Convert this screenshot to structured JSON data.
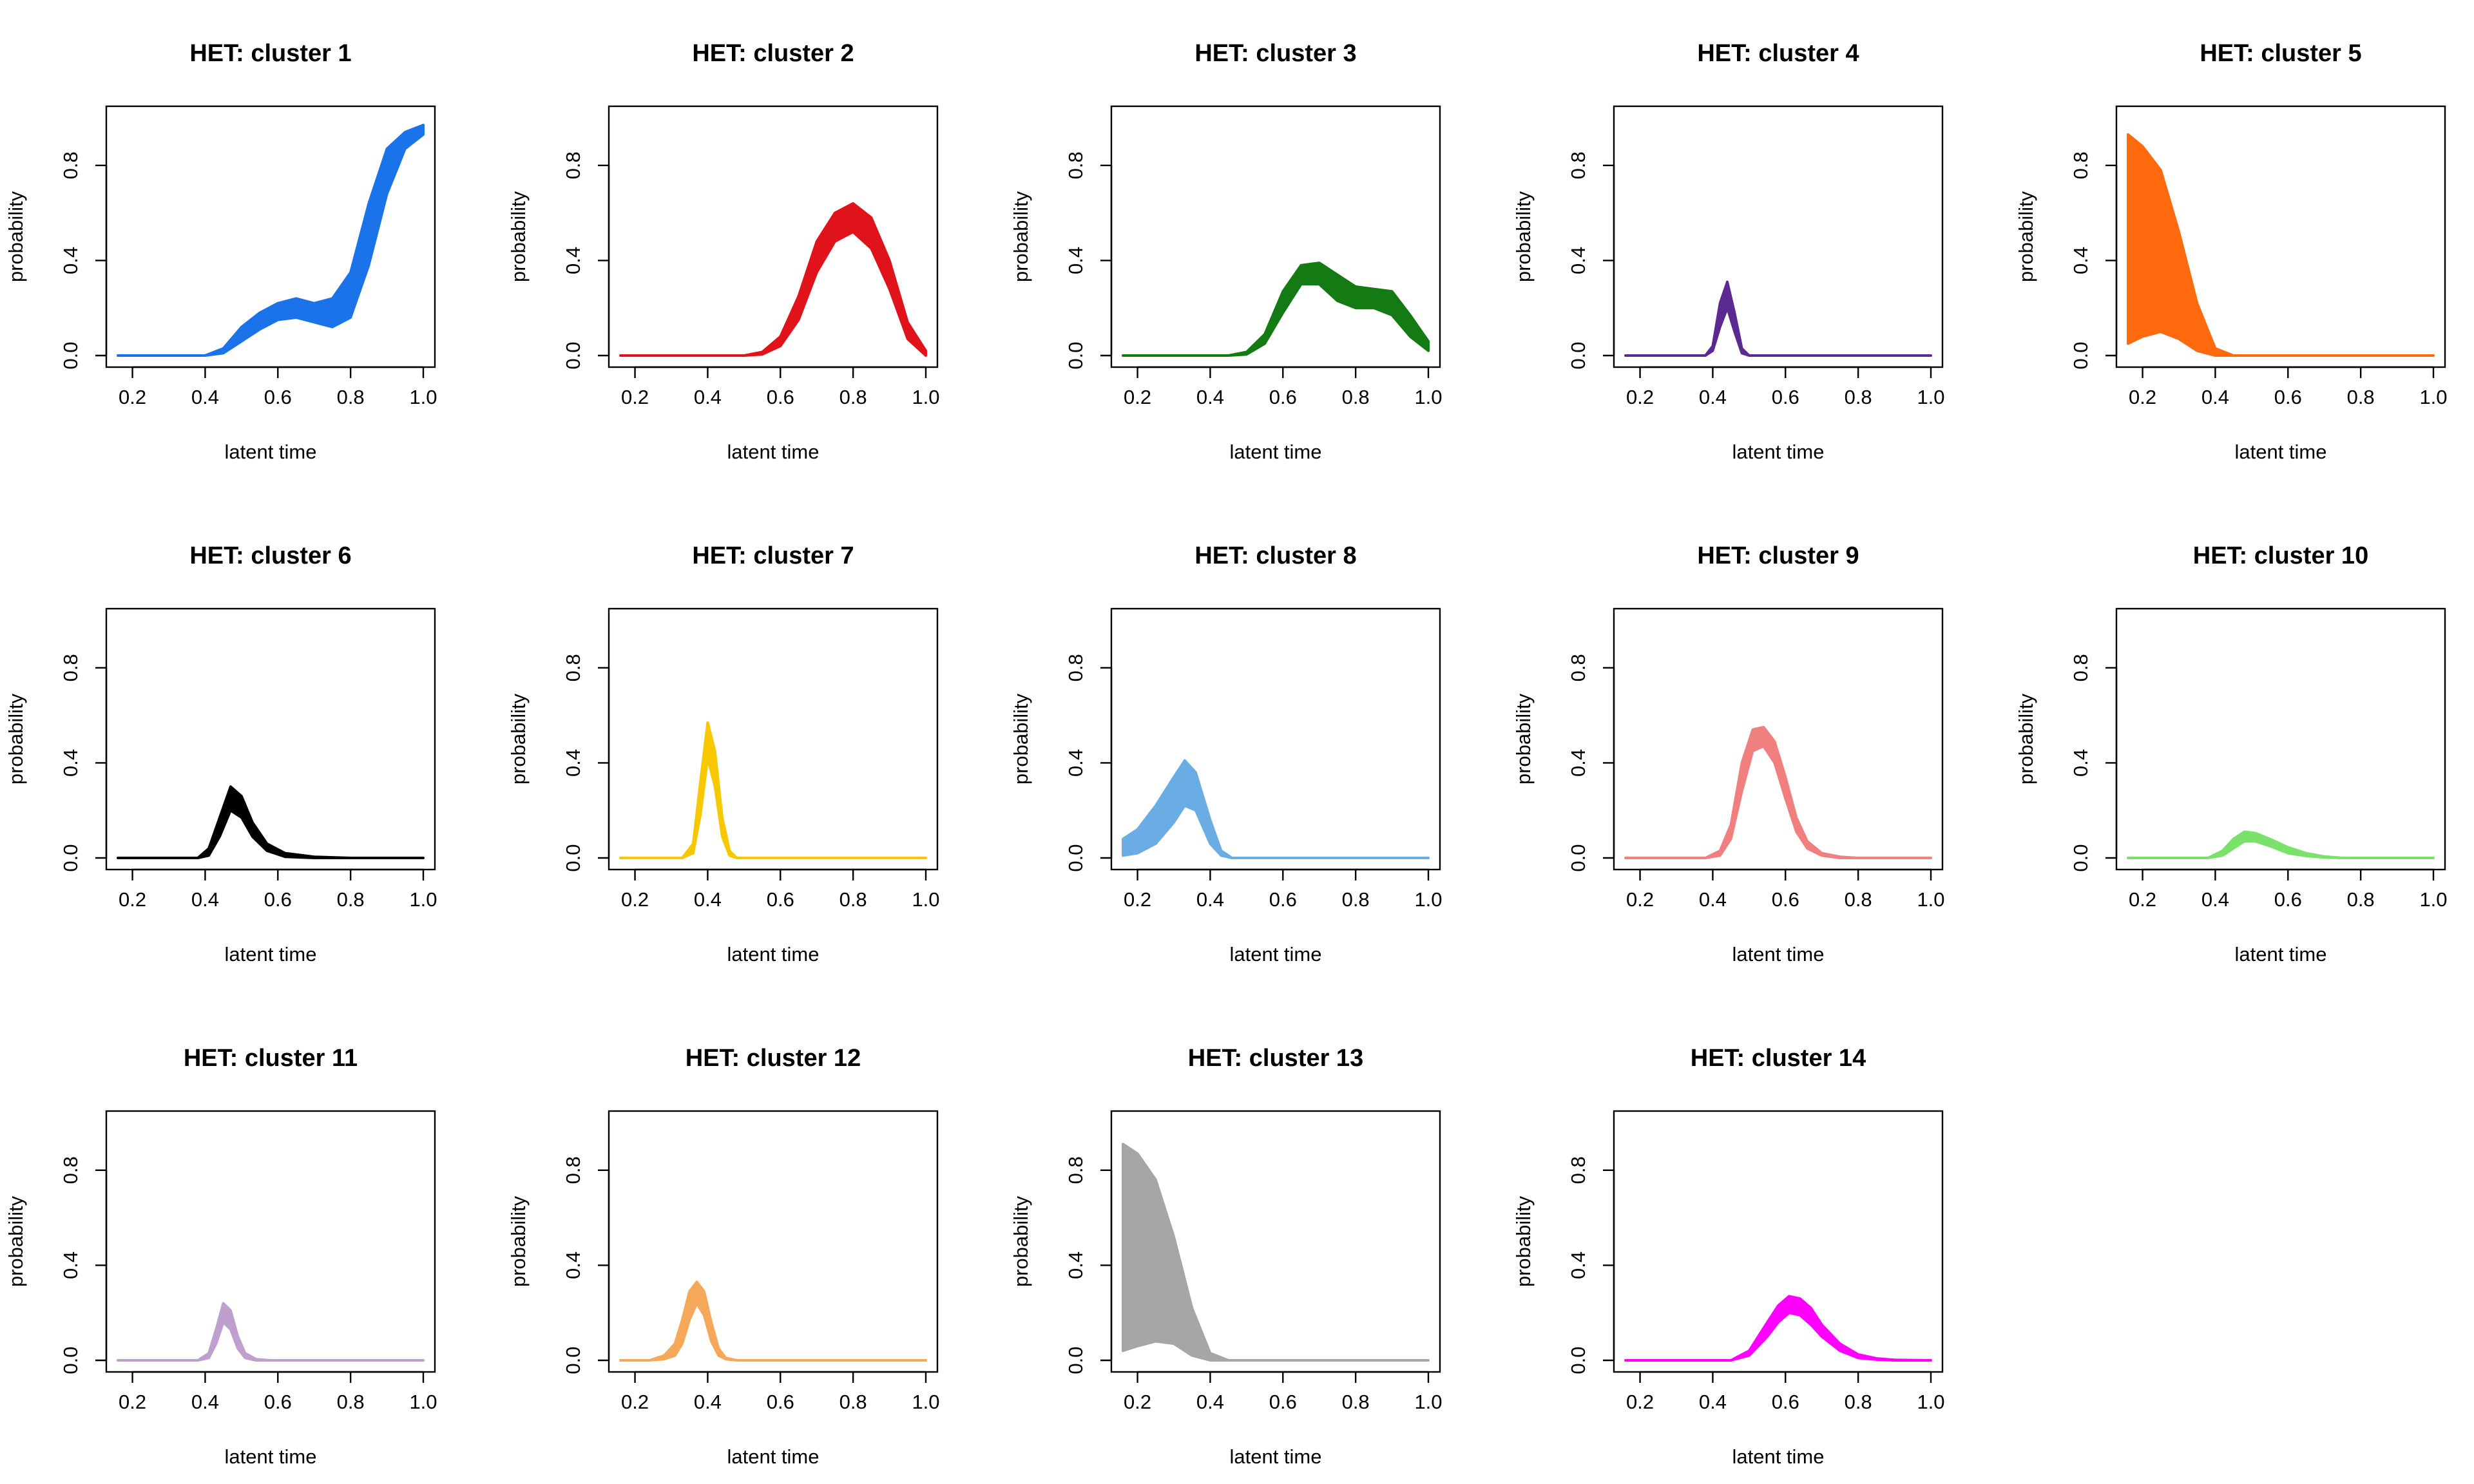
{
  "chart_data": [
    {
      "type": "area",
      "title": "HET: cluster 1",
      "xlabel": "latent time",
      "ylabel": "probability",
      "xlim": [
        0.16,
        1.0
      ],
      "ylim": [
        0,
        1
      ],
      "xticks": [
        "0.2",
        "0.4",
        "0.6",
        "0.8",
        "1.0"
      ],
      "yticks": [
        "0.0",
        "0.4",
        "0.8"
      ],
      "color": "#1A73E8",
      "x": [
        0.16,
        0.4,
        0.45,
        0.5,
        0.55,
        0.6,
        0.65,
        0.7,
        0.75,
        0.8,
        0.85,
        0.9,
        0.95,
        1.0
      ],
      "lower": [
        0,
        0,
        0.01,
        0.06,
        0.11,
        0.15,
        0.16,
        0.14,
        0.12,
        0.16,
        0.38,
        0.68,
        0.87,
        0.93
      ],
      "upper": [
        0,
        0,
        0.03,
        0.12,
        0.18,
        0.22,
        0.24,
        0.22,
        0.24,
        0.35,
        0.64,
        0.87,
        0.94,
        0.97
      ]
    },
    {
      "type": "area",
      "title": "HET: cluster 2",
      "xlabel": "latent time",
      "ylabel": "probability",
      "xlim": [
        0.16,
        1.0
      ],
      "ylim": [
        0,
        1
      ],
      "xticks": [
        "0.2",
        "0.4",
        "0.6",
        "0.8",
        "1.0"
      ],
      "yticks": [
        "0.0",
        "0.4",
        "0.8"
      ],
      "color": "#E0121A",
      "x": [
        0.16,
        0.5,
        0.55,
        0.6,
        0.65,
        0.7,
        0.75,
        0.8,
        0.85,
        0.9,
        0.95,
        1.0
      ],
      "lower": [
        0,
        0,
        0.005,
        0.04,
        0.15,
        0.35,
        0.48,
        0.52,
        0.45,
        0.28,
        0.07,
        0.0
      ],
      "upper": [
        0,
        0,
        0.015,
        0.08,
        0.25,
        0.48,
        0.6,
        0.64,
        0.58,
        0.4,
        0.14,
        0.02
      ]
    },
    {
      "type": "area",
      "title": "HET: cluster 3",
      "xlabel": "latent time",
      "ylabel": "probability",
      "xlim": [
        0.16,
        1.0
      ],
      "ylim": [
        0,
        1
      ],
      "xticks": [
        "0.2",
        "0.4",
        "0.6",
        "0.8",
        "1.0"
      ],
      "yticks": [
        "0.0",
        "0.4",
        "0.8"
      ],
      "color": "#147A14",
      "x": [
        0.16,
        0.45,
        0.5,
        0.55,
        0.6,
        0.65,
        0.7,
        0.75,
        0.8,
        0.85,
        0.9,
        0.95,
        1.0
      ],
      "lower": [
        0,
        0,
        0.005,
        0.05,
        0.18,
        0.3,
        0.3,
        0.23,
        0.2,
        0.2,
        0.17,
        0.08,
        0.02
      ],
      "upper": [
        0,
        0,
        0.015,
        0.09,
        0.27,
        0.38,
        0.39,
        0.34,
        0.29,
        0.28,
        0.27,
        0.17,
        0.06
      ]
    },
    {
      "type": "area",
      "title": "HET: cluster 4",
      "xlabel": "latent time",
      "ylabel": "probability",
      "xlim": [
        0.16,
        1.0
      ],
      "ylim": [
        0,
        1
      ],
      "xticks": [
        "0.2",
        "0.4",
        "0.6",
        "0.8",
        "1.0"
      ],
      "yticks": [
        "0.0",
        "0.4",
        "0.8"
      ],
      "color": "#5B2A91",
      "x": [
        0.16,
        0.38,
        0.4,
        0.42,
        0.44,
        0.46,
        0.48,
        0.5,
        1.0
      ],
      "lower": [
        0,
        0,
        0.02,
        0.12,
        0.2,
        0.1,
        0.01,
        0,
        0
      ],
      "upper": [
        0,
        0,
        0.04,
        0.22,
        0.31,
        0.18,
        0.03,
        0,
        0
      ]
    },
    {
      "type": "area",
      "title": "HET: cluster 5",
      "xlabel": "latent time",
      "ylabel": "probability",
      "xlim": [
        0.16,
        1.0
      ],
      "ylim": [
        0,
        1
      ],
      "xticks": [
        "0.2",
        "0.4",
        "0.6",
        "0.8",
        "1.0"
      ],
      "yticks": [
        "0.0",
        "0.4",
        "0.8"
      ],
      "color": "#FF6A0E",
      "x": [
        0.16,
        0.2,
        0.25,
        0.3,
        0.35,
        0.4,
        0.45,
        1.0
      ],
      "lower": [
        0.05,
        0.08,
        0.1,
        0.07,
        0.02,
        0,
        0,
        0
      ],
      "upper": [
        0.93,
        0.88,
        0.78,
        0.52,
        0.22,
        0.03,
        0,
        0
      ]
    },
    {
      "type": "area",
      "title": "HET: cluster 6",
      "xlabel": "latent time",
      "ylabel": "probability",
      "xlim": [
        0.16,
        1.0
      ],
      "ylim": [
        0,
        1
      ],
      "xticks": [
        "0.2",
        "0.4",
        "0.6",
        "0.8",
        "1.0"
      ],
      "yticks": [
        "0.0",
        "0.4",
        "0.8"
      ],
      "color": "#000000",
      "x": [
        0.16,
        0.38,
        0.41,
        0.44,
        0.47,
        0.5,
        0.53,
        0.57,
        0.62,
        0.7,
        0.8,
        1.0
      ],
      "lower": [
        0,
        0,
        0.01,
        0.09,
        0.2,
        0.17,
        0.09,
        0.03,
        0.005,
        0,
        0,
        0
      ],
      "upper": [
        0,
        0,
        0.04,
        0.17,
        0.3,
        0.26,
        0.15,
        0.06,
        0.02,
        0.005,
        0,
        0
      ]
    },
    {
      "type": "area",
      "title": "HET: cluster 7",
      "xlabel": "latent time",
      "ylabel": "probability",
      "xlim": [
        0.16,
        1.0
      ],
      "ylim": [
        0,
        1
      ],
      "xticks": [
        "0.2",
        "0.4",
        "0.6",
        "0.8",
        "1.0"
      ],
      "yticks": [
        "0.0",
        "0.4",
        "0.8"
      ],
      "color": "#F7C800",
      "x": [
        0.16,
        0.33,
        0.36,
        0.38,
        0.4,
        0.42,
        0.44,
        0.46,
        0.48,
        1.0
      ],
      "lower": [
        0,
        0,
        0.02,
        0.18,
        0.42,
        0.3,
        0.09,
        0.01,
        0,
        0
      ],
      "upper": [
        0,
        0,
        0.06,
        0.32,
        0.57,
        0.45,
        0.17,
        0.03,
        0,
        0
      ]
    },
    {
      "type": "area",
      "title": "HET: cluster 8",
      "xlabel": "latent time",
      "ylabel": "probability",
      "xlim": [
        0.16,
        1.0
      ],
      "ylim": [
        0,
        1
      ],
      "xticks": [
        "0.2",
        "0.4",
        "0.6",
        "0.8",
        "1.0"
      ],
      "yticks": [
        "0.0",
        "0.4",
        "0.8"
      ],
      "color": "#6AADE4",
      "x": [
        0.16,
        0.2,
        0.25,
        0.3,
        0.33,
        0.36,
        0.4,
        0.43,
        0.46,
        1.0
      ],
      "lower": [
        0.01,
        0.02,
        0.06,
        0.15,
        0.22,
        0.2,
        0.06,
        0.01,
        0,
        0
      ],
      "upper": [
        0.08,
        0.12,
        0.22,
        0.34,
        0.41,
        0.36,
        0.16,
        0.03,
        0,
        0
      ]
    },
    {
      "type": "area",
      "title": "HET: cluster 9",
      "xlabel": "latent time",
      "ylabel": "probability",
      "xlim": [
        0.16,
        1.0
      ],
      "ylim": [
        0,
        1
      ],
      "xticks": [
        "0.2",
        "0.4",
        "0.6",
        "0.8",
        "1.0"
      ],
      "yticks": [
        "0.0",
        "0.4",
        "0.8"
      ],
      "color": "#F08080",
      "x": [
        0.16,
        0.38,
        0.42,
        0.45,
        0.48,
        0.51,
        0.54,
        0.57,
        0.6,
        0.63,
        0.66,
        0.7,
        0.75,
        0.8,
        1.0
      ],
      "lower": [
        0,
        0,
        0.01,
        0.08,
        0.28,
        0.45,
        0.47,
        0.4,
        0.25,
        0.11,
        0.04,
        0.01,
        0,
        0,
        0
      ],
      "upper": [
        0,
        0,
        0.03,
        0.14,
        0.4,
        0.54,
        0.55,
        0.49,
        0.34,
        0.17,
        0.07,
        0.02,
        0.005,
        0,
        0
      ]
    },
    {
      "type": "area",
      "title": "HET: cluster 10",
      "xlabel": "latent time",
      "ylabel": "probability",
      "xlim": [
        0.16,
        1.0
      ],
      "ylim": [
        0,
        1
      ],
      "xticks": [
        "0.2",
        "0.4",
        "0.6",
        "0.8",
        "1.0"
      ],
      "yticks": [
        "0.0",
        "0.4",
        "0.8"
      ],
      "color": "#7AE26A",
      "x": [
        0.16,
        0.38,
        0.42,
        0.45,
        0.48,
        0.51,
        0.55,
        0.6,
        0.65,
        0.7,
        0.75,
        1.0
      ],
      "lower": [
        0,
        0,
        0.01,
        0.04,
        0.07,
        0.07,
        0.05,
        0.02,
        0.008,
        0.002,
        0,
        0
      ],
      "upper": [
        0,
        0,
        0.03,
        0.08,
        0.11,
        0.105,
        0.08,
        0.045,
        0.02,
        0.006,
        0,
        0
      ]
    },
    {
      "type": "area",
      "title": "HET: cluster 11",
      "xlabel": "latent time",
      "ylabel": "probability",
      "xlim": [
        0.16,
        1.0
      ],
      "ylim": [
        0,
        1
      ],
      "xticks": [
        "0.2",
        "0.4",
        "0.6",
        "0.8",
        "1.0"
      ],
      "yticks": [
        "0.0",
        "0.4",
        "0.8"
      ],
      "color": "#BFA0CC",
      "x": [
        0.16,
        0.38,
        0.41,
        0.43,
        0.45,
        0.47,
        0.49,
        0.51,
        0.54,
        0.58,
        1.0
      ],
      "lower": [
        0,
        0,
        0.01,
        0.07,
        0.16,
        0.13,
        0.05,
        0.01,
        0,
        0,
        0
      ],
      "upper": [
        0,
        0,
        0.03,
        0.13,
        0.24,
        0.21,
        0.1,
        0.03,
        0.005,
        0,
        0
      ]
    },
    {
      "type": "area",
      "title": "HET: cluster 12",
      "xlabel": "latent time",
      "ylabel": "probability",
      "xlim": [
        0.16,
        1.0
      ],
      "ylim": [
        0,
        1
      ],
      "xticks": [
        "0.2",
        "0.4",
        "0.6",
        "0.8",
        "1.0"
      ],
      "yticks": [
        "0.0",
        "0.4",
        "0.8"
      ],
      "color": "#F6A85A",
      "x": [
        0.16,
        0.24,
        0.28,
        0.31,
        0.33,
        0.35,
        0.37,
        0.39,
        0.41,
        0.43,
        0.45,
        0.48,
        1.0
      ],
      "lower": [
        0,
        0,
        0.005,
        0.02,
        0.07,
        0.17,
        0.24,
        0.19,
        0.08,
        0.02,
        0.005,
        0,
        0
      ],
      "upper": [
        0,
        0,
        0.02,
        0.07,
        0.17,
        0.29,
        0.33,
        0.29,
        0.16,
        0.05,
        0.01,
        0,
        0
      ]
    },
    {
      "type": "area",
      "title": "HET: cluster 13",
      "xlabel": "latent time",
      "ylabel": "probability",
      "xlim": [
        0.16,
        1.0
      ],
      "ylim": [
        0,
        1
      ],
      "xticks": [
        "0.2",
        "0.4",
        "0.6",
        "0.8",
        "1.0"
      ],
      "yticks": [
        "0.0",
        "0.4",
        "0.8"
      ],
      "color": "#A6A6A6",
      "x": [
        0.16,
        0.2,
        0.25,
        0.3,
        0.35,
        0.4,
        0.45,
        1.0
      ],
      "lower": [
        0.04,
        0.06,
        0.08,
        0.07,
        0.02,
        0,
        0,
        0
      ],
      "upper": [
        0.91,
        0.87,
        0.76,
        0.52,
        0.22,
        0.03,
        0,
        0
      ]
    },
    {
      "type": "area",
      "title": "HET: cluster 14",
      "xlabel": "latent time",
      "ylabel": "probability",
      "xlim": [
        0.16,
        1.0
      ],
      "ylim": [
        0,
        1
      ],
      "xticks": [
        "0.2",
        "0.4",
        "0.6",
        "0.8",
        "1.0"
      ],
      "yticks": [
        "0.0",
        "0.4",
        "0.8"
      ],
      "color": "#FF00FF",
      "x": [
        0.16,
        0.45,
        0.5,
        0.55,
        0.58,
        0.61,
        0.64,
        0.67,
        0.7,
        0.75,
        0.8,
        0.85,
        0.9,
        1.0
      ],
      "lower": [
        0,
        0,
        0.02,
        0.1,
        0.16,
        0.2,
        0.19,
        0.15,
        0.1,
        0.04,
        0.01,
        0.003,
        0,
        0
      ],
      "upper": [
        0,
        0,
        0.04,
        0.16,
        0.23,
        0.27,
        0.26,
        0.22,
        0.15,
        0.07,
        0.025,
        0.008,
        0.002,
        0
      ]
    }
  ]
}
